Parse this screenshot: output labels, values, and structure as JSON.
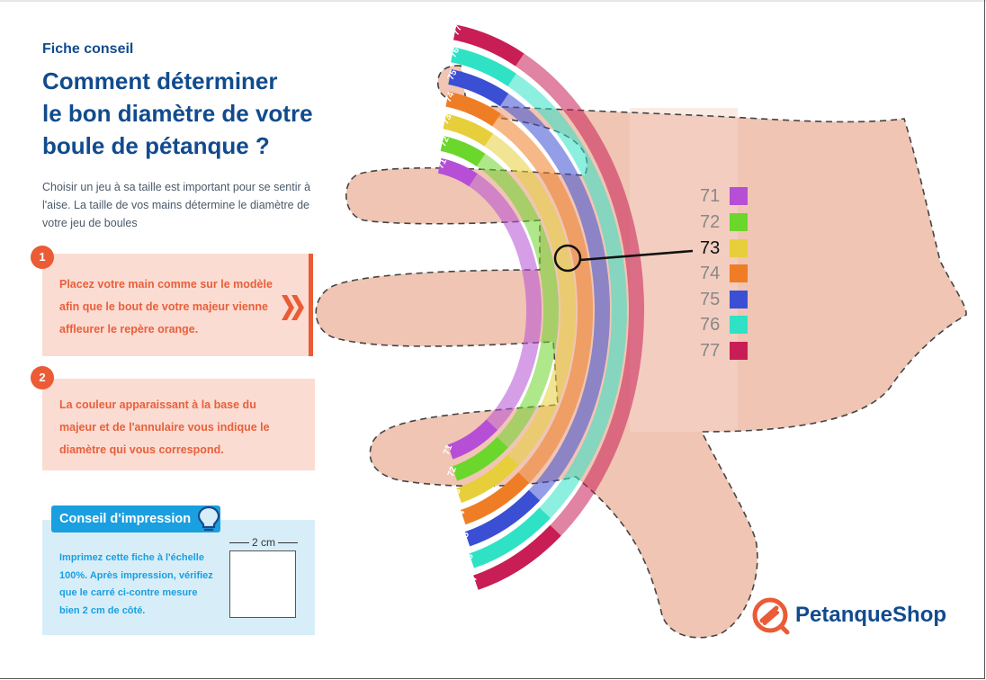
{
  "header": {
    "kicker": "Fiche conseil",
    "title_lines": [
      "Comment déterminer",
      "le bon diamètre de votre",
      "boule de pétanque ?"
    ]
  },
  "intro_lines": [
    "Choisir un jeu à sa taille est important pour se sentir à",
    "l'aise. La taille de vos mains détermine le diamètre de",
    "votre jeu de boules"
  ],
  "steps": [
    {
      "number": "1",
      "lines": [
        "Placez votre main comme sur le modèle",
        "afin que le bout de votre majeur vienne",
        "affleurer le repère orange."
      ]
    },
    {
      "number": "2",
      "lines": [
        "La couleur apparaissant à la base du",
        "majeur et de l'annulaire vous indique le",
        "diamètre qui vous correspond."
      ]
    }
  ],
  "print_tip": {
    "title": "Conseil d'impression",
    "lines": [
      "Imprimez cette fiche à l'échelle",
      "100%. Après impression, vérifiez",
      "que le carré ci-contre mesure",
      "bien 2 cm de côté."
    ],
    "dimension_label": "2 cm",
    "icon": "lightbulb-icon"
  },
  "scale": [
    {
      "value": "71",
      "color": "#b64fd6"
    },
    {
      "value": "72",
      "color": "#6bd62c"
    },
    {
      "value": "73",
      "color": "#e6cf3a"
    },
    {
      "value": "74",
      "color": "#ef7d25"
    },
    {
      "value": "75",
      "color": "#3b4fd4"
    },
    {
      "value": "76",
      "color": "#2fe2c6"
    },
    {
      "value": "77",
      "color": "#c81e55"
    }
  ],
  "highlighted_value": "73",
  "brand": {
    "name": "PetanqueShop",
    "icon": "petanqueshop-logo-icon",
    "color": "#ea5b36"
  },
  "colors": {
    "accent": "#ea5b36",
    "navy": "#114b8e",
    "skin": "#f0c5b4",
    "step_bg": "#fbdcd2",
    "tip_bg": "#d7eef9",
    "tip_blue": "#1a9fe0"
  }
}
